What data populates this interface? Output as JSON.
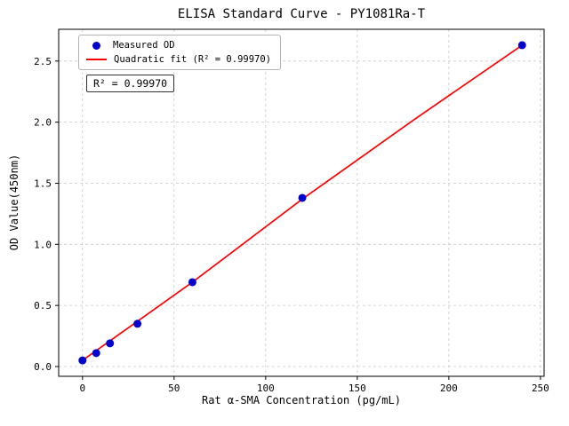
{
  "chart_data": {
    "type": "scatter",
    "title": "ELISA Standard Curve - PY1081Ra-T",
    "xlabel": "Rat α-SMA Concentration (pg/mL)",
    "ylabel": "OD Value(450nm)",
    "xlim": [
      -13,
      252
    ],
    "ylim": [
      -0.08,
      2.76
    ],
    "xticks": [
      0,
      50,
      100,
      150,
      200,
      250
    ],
    "xtick_labels": [
      "0",
      "50",
      "100",
      "150",
      "200",
      "250"
    ],
    "yticks": [
      0.0,
      0.5,
      1.0,
      1.5,
      2.0,
      2.5
    ],
    "ytick_labels": [
      "0.0",
      "0.5",
      "1.0",
      "1.5",
      "2.0",
      "2.5"
    ],
    "grid": true,
    "grid_color": "#c9c9c9",
    "legend_position": "upper left",
    "annotation": "R² = 0.99970",
    "series": [
      {
        "name": "Measured OD",
        "type": "scatter",
        "color": "#0000cd",
        "x": [
          0,
          7.5,
          15,
          30,
          60,
          120,
          240
        ],
        "y": [
          0.05,
          0.11,
          0.19,
          0.35,
          0.69,
          1.38,
          2.63
        ]
      },
      {
        "name": "Quadratic fit (R² = 0.99970)",
        "type": "line",
        "color": "#ff0000",
        "x": [
          0,
          30,
          60,
          120,
          180,
          240
        ],
        "y": [
          0.05,
          0.37,
          0.69,
          1.37,
          2.01,
          2.63
        ]
      }
    ]
  }
}
